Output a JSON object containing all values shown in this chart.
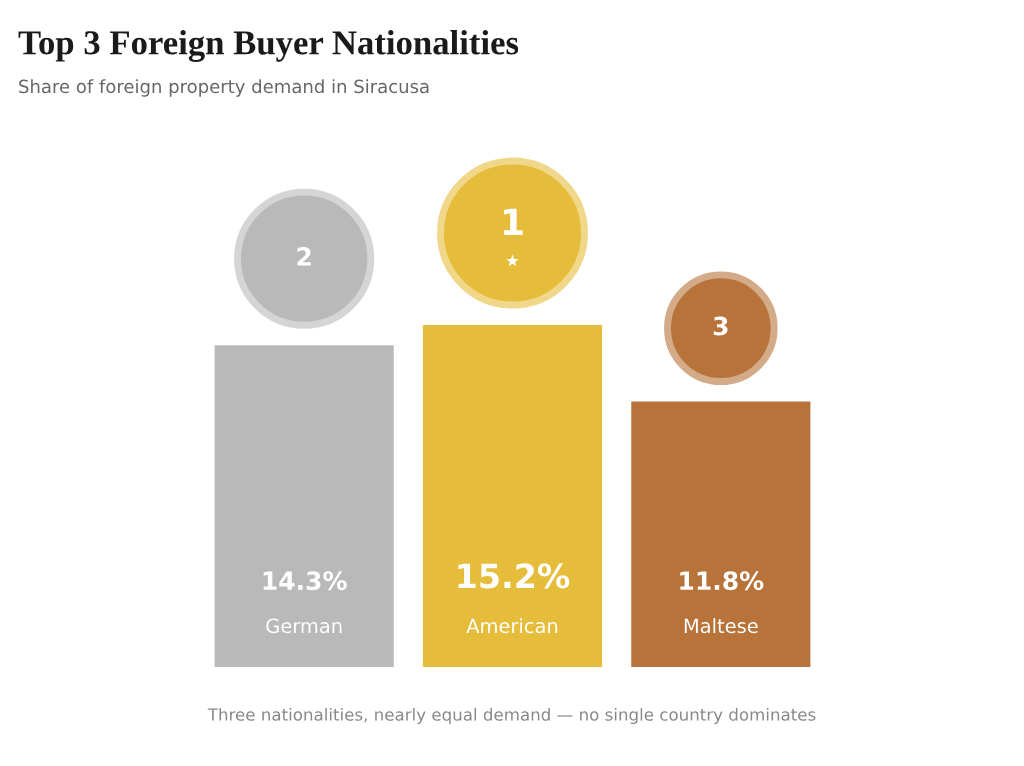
{
  "chart_data": {
    "type": "bar",
    "title": "Top 3 Foreign Buyer Nationalities",
    "subtitle": "Share of foreign property demand in Siracusa",
    "categories": [
      "German",
      "American",
      "Maltese"
    ],
    "values": [
      14.3,
      15.2,
      11.8
    ],
    "value_labels": [
      "14.3%",
      "15.2%",
      "11.8%"
    ],
    "colors": [
      "#b9b9b9",
      "#e6bd3a",
      "#b8733a"
    ],
    "annotations": [
      "2",
      "1",
      "3",
      "Three nationalities, nearly equal demand — no single country dominates"
    ]
  }
}
